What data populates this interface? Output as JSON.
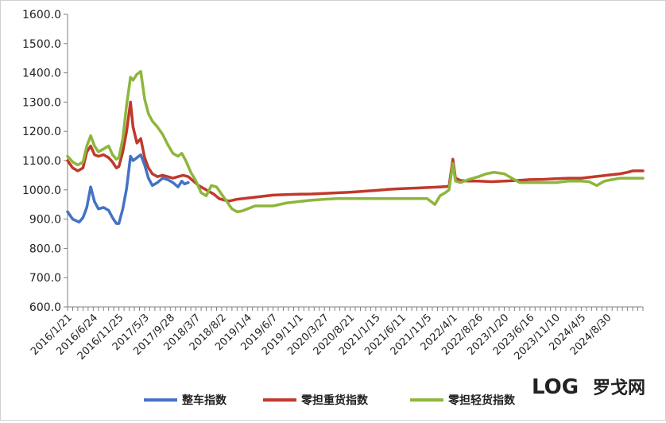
{
  "chart_data": {
    "type": "line",
    "title": "",
    "xlabel": "",
    "ylabel": "",
    "ylim": [
      600,
      1600
    ],
    "y_ticks": [
      "600.0",
      "700.0",
      "800.0",
      "900.0",
      "1000.0",
      "1100.0",
      "1200.0",
      "1300.0",
      "1400.0",
      "1500.0",
      "1600.0"
    ],
    "x_tick_labels": [
      "2016/1/21",
      "2016/6/24",
      "2016/11/25",
      "2017/5/3",
      "2017/9/28",
      "2018/3/7",
      "2018/8/2",
      "2019/1/4",
      "2019/6/7",
      "2019/11/1",
      "2020/3/27",
      "2020/8/21",
      "2021/1/15",
      "2021/6/11",
      "2021/11/5",
      "2022/4/1",
      "2022/8/26",
      "2023/1/20",
      "2023/6/16",
      "2023/11/10",
      "2024/4/5",
      "2024/8/30"
    ],
    "x_span": [
      0,
      22.4
    ],
    "grid": false,
    "legend_position": "bottom",
    "series": [
      {
        "name": "整车指数",
        "color": "#4472C4",
        "points": [
          [
            0,
            925
          ],
          [
            0.2,
            900
          ],
          [
            0.45,
            890
          ],
          [
            0.6,
            905
          ],
          [
            0.75,
            940
          ],
          [
            0.9,
            1010
          ],
          [
            1.05,
            960
          ],
          [
            1.2,
            935
          ],
          [
            1.4,
            940
          ],
          [
            1.6,
            930
          ],
          [
            1.75,
            905
          ],
          [
            1.9,
            885
          ],
          [
            2.0,
            885
          ],
          [
            2.15,
            935
          ],
          [
            2.3,
            1005
          ],
          [
            2.45,
            1115
          ],
          [
            2.55,
            1100
          ],
          [
            2.7,
            1110
          ],
          [
            2.85,
            1120
          ],
          [
            3.0,
            1085
          ],
          [
            3.15,
            1040
          ],
          [
            3.3,
            1015
          ],
          [
            3.5,
            1025
          ],
          [
            3.7,
            1040
          ],
          [
            3.9,
            1035
          ],
          [
            4.1,
            1025
          ],
          [
            4.3,
            1010
          ],
          [
            4.45,
            1030
          ],
          [
            4.55,
            1020
          ],
          [
            4.7,
            1025
          ]
        ]
      },
      {
        "name": "零担重货指数",
        "color": "#C0392B",
        "points": [
          [
            0,
            1100
          ],
          [
            0.2,
            1075
          ],
          [
            0.4,
            1065
          ],
          [
            0.6,
            1075
          ],
          [
            0.75,
            1130
          ],
          [
            0.9,
            1150
          ],
          [
            1.05,
            1120
          ],
          [
            1.2,
            1115
          ],
          [
            1.4,
            1120
          ],
          [
            1.6,
            1110
          ],
          [
            1.75,
            1095
          ],
          [
            1.9,
            1075
          ],
          [
            2.0,
            1080
          ],
          [
            2.15,
            1130
          ],
          [
            2.3,
            1200
          ],
          [
            2.45,
            1300
          ],
          [
            2.55,
            1215
          ],
          [
            2.7,
            1160
          ],
          [
            2.85,
            1175
          ],
          [
            3.0,
            1110
          ],
          [
            3.15,
            1075
          ],
          [
            3.3,
            1055
          ],
          [
            3.5,
            1045
          ],
          [
            3.7,
            1050
          ],
          [
            3.9,
            1045
          ],
          [
            4.1,
            1040
          ],
          [
            4.3,
            1045
          ],
          [
            4.5,
            1050
          ],
          [
            4.7,
            1045
          ],
          [
            4.9,
            1030
          ],
          [
            5.1,
            1015
          ],
          [
            5.3,
            1005
          ],
          [
            5.5,
            995
          ],
          [
            5.7,
            985
          ],
          [
            5.9,
            970
          ],
          [
            6.1,
            965
          ],
          [
            6.3,
            962
          ],
          [
            6.6,
            968
          ],
          [
            7.0,
            972
          ],
          [
            7.6,
            978
          ],
          [
            8.0,
            982
          ],
          [
            8.5,
            984
          ],
          [
            9.0,
            985
          ],
          [
            9.5,
            986
          ],
          [
            10.0,
            988
          ],
          [
            10.5,
            990
          ],
          [
            11.0,
            992
          ],
          [
            11.5,
            995
          ],
          [
            12.0,
            998
          ],
          [
            12.5,
            1002
          ],
          [
            13.0,
            1004
          ],
          [
            13.5,
            1006
          ],
          [
            14.0,
            1008
          ],
          [
            14.5,
            1010
          ],
          [
            14.85,
            1012
          ],
          [
            15.0,
            1105
          ],
          [
            15.1,
            1040
          ],
          [
            15.3,
            1032
          ],
          [
            15.6,
            1030
          ],
          [
            16.0,
            1030
          ],
          [
            16.5,
            1028
          ],
          [
            17.0,
            1030
          ],
          [
            17.5,
            1032
          ],
          [
            18.0,
            1035
          ],
          [
            18.5,
            1036
          ],
          [
            19.0,
            1038
          ],
          [
            19.5,
            1040
          ],
          [
            20.0,
            1040
          ],
          [
            20.5,
            1045
          ],
          [
            21.0,
            1050
          ],
          [
            21.5,
            1055
          ],
          [
            21.8,
            1060
          ],
          [
            22.0,
            1065
          ],
          [
            22.4,
            1065
          ]
        ]
      },
      {
        "name": "零担轻货指数",
        "color": "#8DB63C",
        "points": [
          [
            0,
            1115
          ],
          [
            0.2,
            1095
          ],
          [
            0.4,
            1085
          ],
          [
            0.6,
            1095
          ],
          [
            0.75,
            1150
          ],
          [
            0.9,
            1185
          ],
          [
            1.05,
            1150
          ],
          [
            1.2,
            1130
          ],
          [
            1.4,
            1140
          ],
          [
            1.6,
            1150
          ],
          [
            1.75,
            1120
          ],
          [
            1.9,
            1105
          ],
          [
            2.0,
            1110
          ],
          [
            2.15,
            1175
          ],
          [
            2.3,
            1290
          ],
          [
            2.45,
            1385
          ],
          [
            2.55,
            1375
          ],
          [
            2.7,
            1395
          ],
          [
            2.85,
            1405
          ],
          [
            3.0,
            1310
          ],
          [
            3.15,
            1260
          ],
          [
            3.3,
            1235
          ],
          [
            3.5,
            1215
          ],
          [
            3.7,
            1190
          ],
          [
            3.9,
            1155
          ],
          [
            4.1,
            1125
          ],
          [
            4.3,
            1115
          ],
          [
            4.45,
            1125
          ],
          [
            4.6,
            1100
          ],
          [
            4.8,
            1060
          ],
          [
            5.0,
            1030
          ],
          [
            5.2,
            990
          ],
          [
            5.4,
            980
          ],
          [
            5.6,
            1015
          ],
          [
            5.8,
            1010
          ],
          [
            6.0,
            985
          ],
          [
            6.2,
            960
          ],
          [
            6.4,
            935
          ],
          [
            6.6,
            925
          ],
          [
            6.8,
            928
          ],
          [
            7.0,
            935
          ],
          [
            7.3,
            945
          ],
          [
            7.6,
            945
          ],
          [
            8.0,
            945
          ],
          [
            8.5,
            955
          ],
          [
            9.0,
            960
          ],
          [
            9.5,
            965
          ],
          [
            10.0,
            968
          ],
          [
            10.5,
            970
          ],
          [
            11.0,
            970
          ],
          [
            11.5,
            970
          ],
          [
            12.0,
            970
          ],
          [
            12.5,
            970
          ],
          [
            13.0,
            970
          ],
          [
            13.5,
            970
          ],
          [
            14.0,
            970
          ],
          [
            14.3,
            950
          ],
          [
            14.5,
            980
          ],
          [
            14.7,
            990
          ],
          [
            14.85,
            1000
          ],
          [
            15.0,
            1090
          ],
          [
            15.1,
            1030
          ],
          [
            15.3,
            1025
          ],
          [
            15.6,
            1035
          ],
          [
            16.0,
            1045
          ],
          [
            16.3,
            1055
          ],
          [
            16.6,
            1060
          ],
          [
            17.0,
            1055
          ],
          [
            17.3,
            1040
          ],
          [
            17.6,
            1025
          ],
          [
            18.0,
            1025
          ],
          [
            18.5,
            1025
          ],
          [
            19.0,
            1025
          ],
          [
            19.5,
            1030
          ],
          [
            20.0,
            1030
          ],
          [
            20.3,
            1028
          ],
          [
            20.6,
            1015
          ],
          [
            20.9,
            1030
          ],
          [
            21.2,
            1035
          ],
          [
            21.5,
            1040
          ],
          [
            21.8,
            1040
          ],
          [
            22.0,
            1040
          ],
          [
            22.4,
            1040
          ]
        ]
      }
    ]
  },
  "watermark": {
    "logo_text": "LOG",
    "brand_text": "罗戈网"
  }
}
